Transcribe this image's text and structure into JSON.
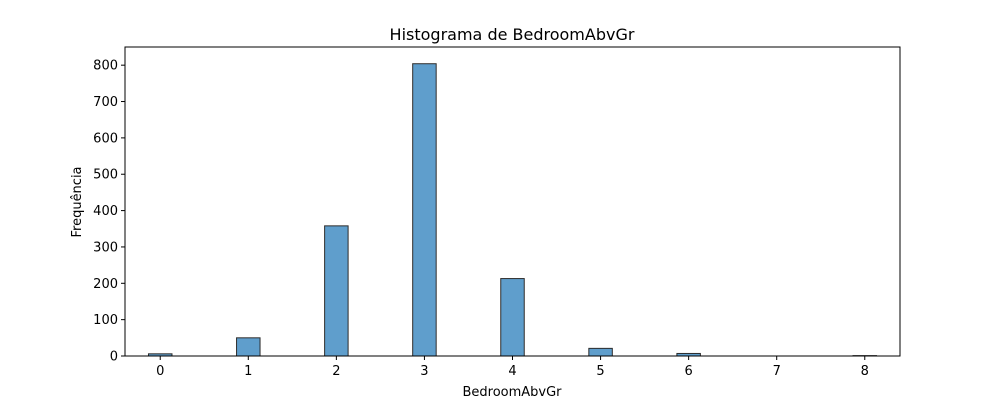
{
  "chart_data": {
    "type": "bar",
    "title": "Histograma de BedroomAbvGr",
    "xlabel": "BedroomAbvGr",
    "ylabel": "Frequência",
    "xlim": [
      -0.4,
      8.4
    ],
    "ylim": [
      0,
      850
    ],
    "xticks": [
      0,
      1,
      2,
      3,
      4,
      5,
      6,
      7,
      8
    ],
    "yticks": [
      0,
      100,
      200,
      300,
      400,
      500,
      600,
      700,
      800
    ],
    "bin_width": 0.2667,
    "bins": [
      {
        "x": 0,
        "value": 6
      },
      {
        "x": 1,
        "value": 50
      },
      {
        "x": 2,
        "value": 358
      },
      {
        "x": 3,
        "value": 804
      },
      {
        "x": 4,
        "value": 213
      },
      {
        "x": 5,
        "value": 21
      },
      {
        "x": 6,
        "value": 7
      },
      {
        "x": 8,
        "value": 1
      }
    ],
    "grid": false,
    "bar_color": "#5f9ecc",
    "edge_color": "#2b2b2b"
  }
}
